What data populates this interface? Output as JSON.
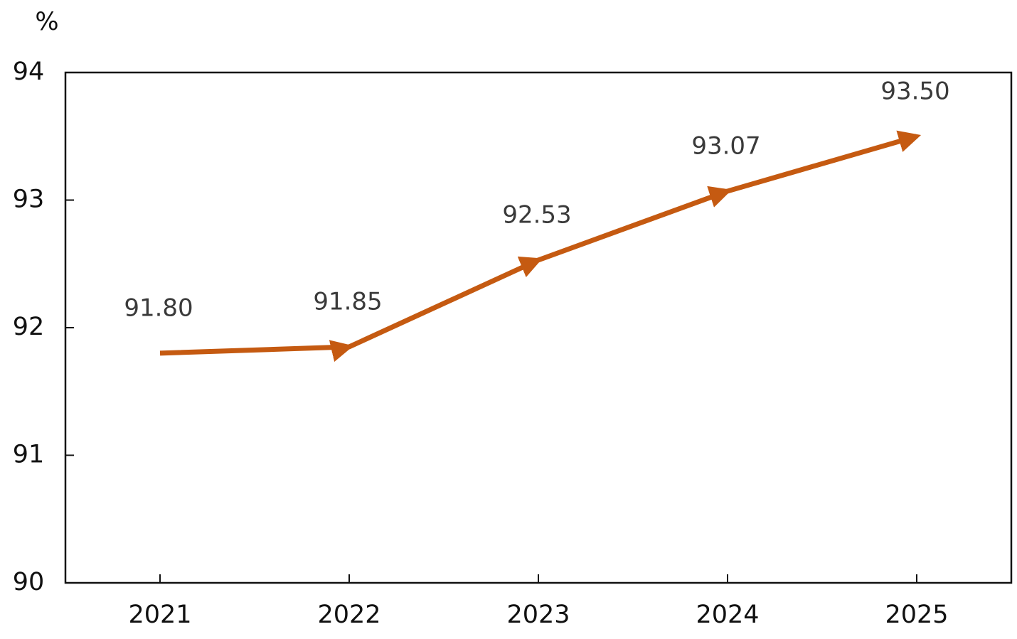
{
  "chart_data": {
    "type": "line",
    "y_label": "%",
    "categories": [
      "2021",
      "2022",
      "2023",
      "2024",
      "2025"
    ],
    "values": [
      91.8,
      91.85,
      92.53,
      93.07,
      93.5
    ],
    "value_labels": [
      "91.80",
      "91.85",
      "92.53",
      "93.07",
      "93.50"
    ],
    "color": "#c55a11",
    "ylim": [
      90,
      94
    ],
    "yticks": [
      90,
      91,
      92,
      93,
      94
    ],
    "grid": false
  }
}
